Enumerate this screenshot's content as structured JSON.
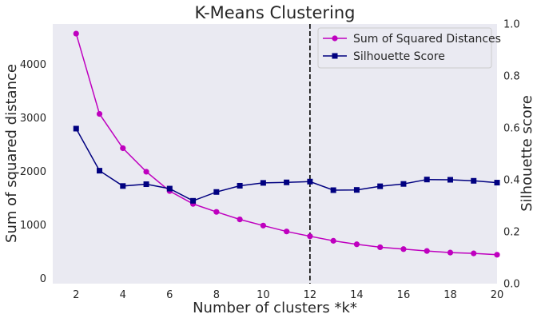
{
  "chart_data": {
    "type": "line",
    "title": "K-Means Clustering",
    "xlabel": "Number of clusters *k*",
    "ylabel_left": "Sum of squared distance",
    "ylabel_right": "Silhouette score",
    "x": [
      2,
      3,
      4,
      5,
      6,
      7,
      8,
      9,
      10,
      11,
      12,
      13,
      14,
      15,
      16,
      17,
      18,
      19,
      20
    ],
    "xlim": [
      1,
      20
    ],
    "ylim_left": [
      -100,
      4750
    ],
    "ylim_right": [
      0.0,
      1.0
    ],
    "x_ticks": [
      "2",
      "4",
      "6",
      "8",
      "10",
      "12",
      "14",
      "16",
      "18",
      "20"
    ],
    "y_ticks_left": [
      "0",
      "1000",
      "2000",
      "3000",
      "4000"
    ],
    "y_ticks_right": [
      "0.0",
      "0.2",
      "0.4",
      "0.6",
      "0.8",
      "1.0"
    ],
    "series": [
      {
        "name": "Sum of Squared Distances",
        "axis": "left",
        "color": "#bf00bf",
        "marker": "circle",
        "values": [
          4570,
          3070,
          2430,
          1990,
          1630,
          1390,
          1240,
          1100,
          985,
          875,
          785,
          700,
          635,
          580,
          545,
          510,
          480,
          465,
          440
        ]
      },
      {
        "name": "Silhouette Score",
        "axis": "right",
        "color": "#000080",
        "marker": "square",
        "values": [
          0.597,
          0.435,
          0.376,
          0.383,
          0.366,
          0.319,
          0.353,
          0.377,
          0.388,
          0.39,
          0.393,
          0.36,
          0.361,
          0.375,
          0.384,
          0.401,
          0.4,
          0.396,
          0.389
        ]
      }
    ],
    "vline_x": 12,
    "grid": false,
    "legend_position": "upper-right",
    "background_color": "#eaeaf2"
  }
}
